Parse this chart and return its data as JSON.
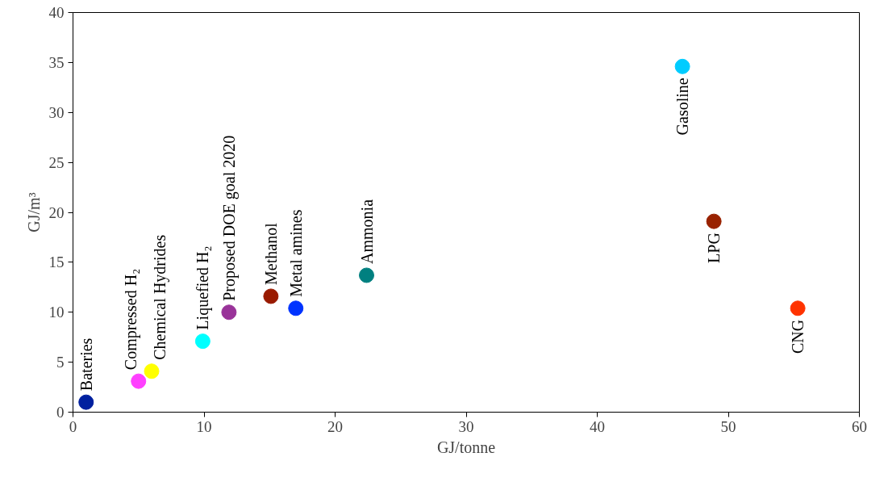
{
  "chart_data": {
    "type": "scatter",
    "xlabel": "GJ/tonne",
    "ylabel": "GJ/m³",
    "xlim": [
      0,
      60
    ],
    "ylim": [
      0,
      40
    ],
    "xticks": [
      0,
      10,
      20,
      30,
      40,
      50,
      60
    ],
    "yticks": [
      0,
      5,
      10,
      15,
      20,
      25,
      30,
      35,
      40
    ],
    "grid": false,
    "legend": false,
    "marker": "circle",
    "series": [
      {
        "name": "Bateries",
        "color": "#00209f",
        "x": [
          1
        ],
        "values": [
          1
        ]
      },
      {
        "name": "Compressed H₂",
        "color": "#ff40ff",
        "x": [
          5
        ],
        "values": [
          3.1
        ]
      },
      {
        "name": "Chemical Hydrides",
        "color": "#ffff00",
        "x": [
          6
        ],
        "values": [
          4.1
        ]
      },
      {
        "name": "Liquefied H₂",
        "color": "#00ffff",
        "x": [
          9.9
        ],
        "values": [
          7.1
        ]
      },
      {
        "name": "Proposed DOE goal 2020",
        "color": "#993399",
        "x": [
          11.9
        ],
        "values": [
          10
        ]
      },
      {
        "name": "Methanol",
        "color": "#991a00",
        "x": [
          15.1
        ],
        "values": [
          11.6
        ]
      },
      {
        "name": "Metal amines",
        "color": "#0033ff",
        "x": [
          17
        ],
        "values": [
          10.4
        ]
      },
      {
        "name": "Ammonia",
        "color": "#008080",
        "x": [
          22.4
        ],
        "values": [
          13.7
        ]
      },
      {
        "name": "Gasoline",
        "color": "#00ccff",
        "x": [
          46.5
        ],
        "values": [
          34.6
        ]
      },
      {
        "name": "LPG",
        "color": "#992200",
        "x": [
          48.9
        ],
        "values": [
          19.1
        ]
      },
      {
        "name": "CNG",
        "color": "#ff3300",
        "x": [
          55.3
        ],
        "values": [
          10.4
        ]
      }
    ]
  }
}
